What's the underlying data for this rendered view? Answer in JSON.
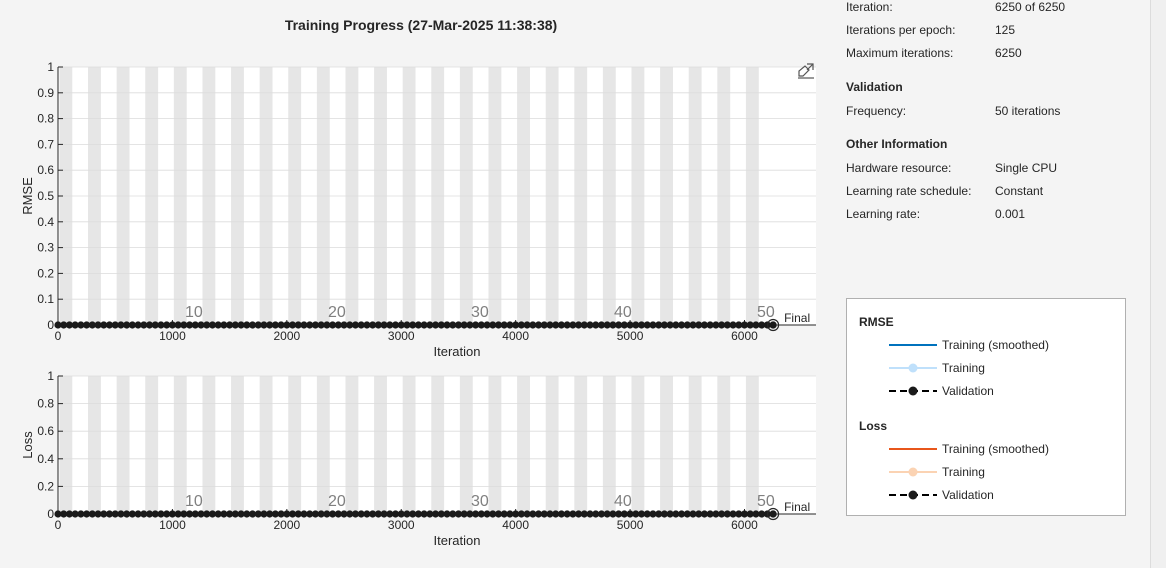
{
  "window": {
    "title": "Training Progress (27-Mar-2025 11:38:38)"
  },
  "info": {
    "progress_rows": [
      {
        "key": "Iteration:",
        "value": "6250 of 6250"
      },
      {
        "key": "Iterations per epoch:",
        "value": "125"
      },
      {
        "key": "Maximum iterations:",
        "value": "6250"
      }
    ],
    "validation": {
      "heading": "Validation",
      "rows": [
        {
          "key": "Frequency:",
          "value": "50 iterations"
        }
      ]
    },
    "other": {
      "heading": "Other Information",
      "rows": [
        {
          "key": "Hardware resource:",
          "value": "Single CPU"
        },
        {
          "key": "Learning rate schedule:",
          "value": "Constant"
        },
        {
          "key": "Learning rate:",
          "value": "0.001"
        }
      ]
    }
  },
  "legend": {
    "groups": [
      {
        "heading": "RMSE",
        "items": [
          {
            "label": "Training (smoothed)",
            "style": "solid",
            "color": "#0072bd"
          },
          {
            "label": "Training",
            "style": "light-marker",
            "color": "#bfe0fb"
          },
          {
            "label": "Validation",
            "style": "dashed-marker",
            "color": "#000000"
          }
        ]
      },
      {
        "heading": "Loss",
        "items": [
          {
            "label": "Training (smoothed)",
            "style": "solid",
            "color": "#e8561b"
          },
          {
            "label": "Training",
            "style": "light-marker",
            "color": "#fbd3b3"
          },
          {
            "label": "Validation",
            "style": "dashed-marker",
            "color": "#000000"
          }
        ]
      }
    ]
  },
  "colors": {
    "epoch_band": "#e6e6e6",
    "grid": "#dcdcdc",
    "validation_marker": "#1a1a1a"
  },
  "icons": {
    "export": "export-axes-icon"
  },
  "chart_data": [
    {
      "type": "line",
      "ylabel": "RMSE",
      "xlabel": "Iteration",
      "xlim": [
        0,
        6625
      ],
      "ylim": [
        0,
        1
      ],
      "x_ticks": [
        0,
        1000,
        2000,
        3000,
        4000,
        5000,
        6000
      ],
      "y_ticks": [
        0,
        0.1,
        0.2,
        0.3,
        0.4,
        0.5,
        0.6,
        0.7,
        0.8,
        0.9,
        1
      ],
      "y_tick_labels": [
        "0",
        "0.1",
        "0.2",
        "0.3",
        "0.4",
        "0.5",
        "0.6",
        "0.7",
        "0.8",
        "0.9",
        "1"
      ],
      "iterations_per_epoch": 125,
      "epochs": 50,
      "epoch_labels": [
        10,
        20,
        30,
        40,
        50
      ],
      "final_label": "Final",
      "final_iteration": 6250,
      "series": [
        {
          "name": "Validation",
          "x_start": 0,
          "x_step": 50,
          "x_end": 6250,
          "y_constant": 0
        }
      ],
      "grid": true
    },
    {
      "type": "line",
      "ylabel": "Loss",
      "xlabel": "Iteration",
      "xlim": [
        0,
        6625
      ],
      "ylim": [
        0,
        1
      ],
      "x_ticks": [
        0,
        1000,
        2000,
        3000,
        4000,
        5000,
        6000
      ],
      "y_ticks": [
        0,
        0.2,
        0.4,
        0.6,
        0.8,
        1
      ],
      "y_tick_labels": [
        "0",
        "0.2",
        "0.4",
        "0.6",
        "0.8",
        "1"
      ],
      "iterations_per_epoch": 125,
      "epochs": 50,
      "epoch_labels": [
        10,
        20,
        30,
        40,
        50
      ],
      "final_label": "Final",
      "final_iteration": 6250,
      "series": [
        {
          "name": "Validation",
          "x_start": 0,
          "x_step": 50,
          "x_end": 6250,
          "y_constant": 0
        }
      ],
      "grid": true
    }
  ]
}
